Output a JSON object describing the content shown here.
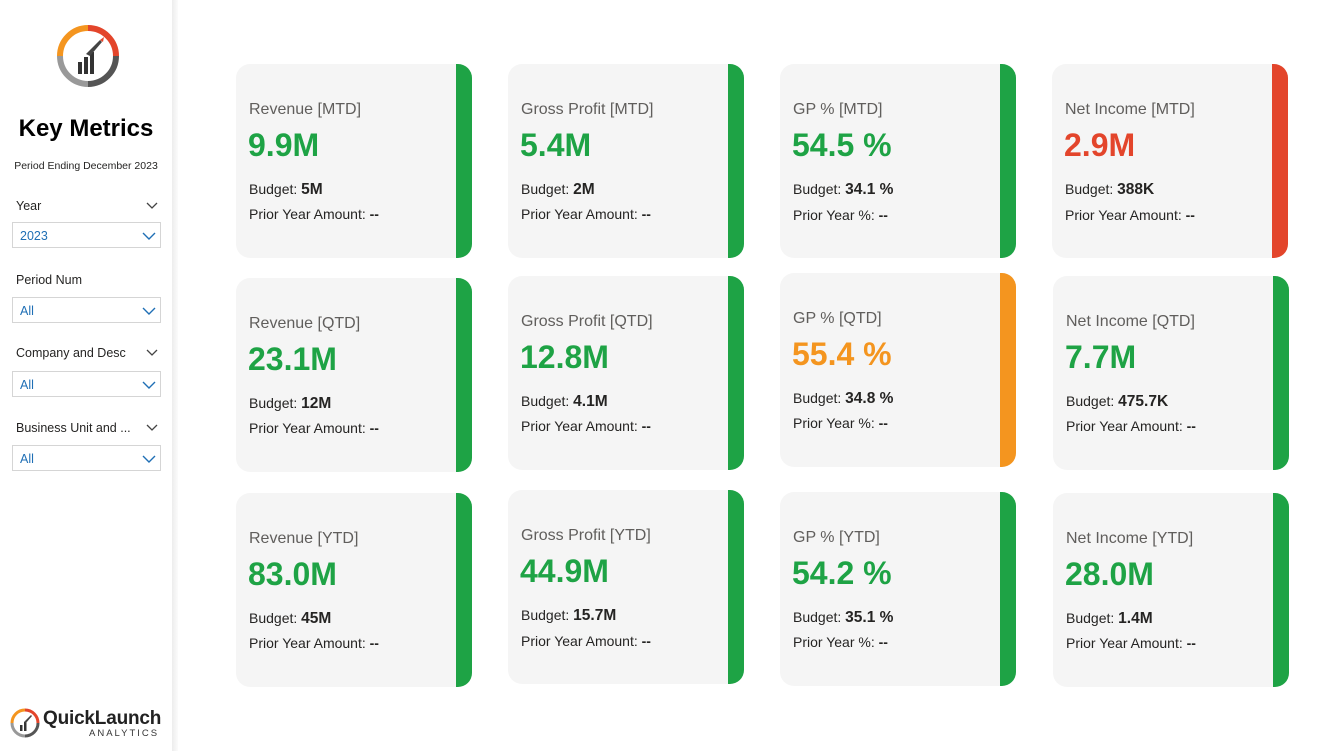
{
  "sidebar": {
    "title": "Key Metrics",
    "subtitle": "Period Ending December 2023",
    "slicers": [
      {
        "label": "Year",
        "value": "2023"
      },
      {
        "label": "Period Num",
        "value": "All"
      },
      {
        "label": "Company and Desc",
        "value": "All"
      },
      {
        "label": "Business Unit and ...",
        "value": "All"
      }
    ],
    "brand": {
      "name": "QuickLaunch",
      "sub": "ANALYTICS"
    }
  },
  "colors": {
    "green": "#1ea345",
    "red": "#e3452b",
    "orange": "#f4951f",
    "card_bg": "#f5f5f5"
  },
  "cards": {
    "rev_mtd": {
      "label": "Revenue [MTD]",
      "value": "9.9M",
      "budget_label": "Budget:",
      "budget": "5M",
      "prior_label": "Prior Year Amount:",
      "prior": "--",
      "status": "green"
    },
    "gp_mtd": {
      "label": "Gross Profit [MTD]",
      "value": "5.4M",
      "budget_label": "Budget:",
      "budget": "2M",
      "prior_label": "Prior Year Amount:",
      "prior": "--",
      "status": "green"
    },
    "gpp_mtd": {
      "label": "GP % [MTD]",
      "value": "54.5 %",
      "budget_label": "Budget:",
      "budget": "34.1 %",
      "prior_label": "Prior Year %:",
      "prior": "--",
      "status": "green"
    },
    "ni_mtd": {
      "label": "Net Income [MTD]",
      "value": "2.9M",
      "budget_label": "Budget:",
      "budget": "388K",
      "prior_label": "Prior Year Amount:",
      "prior": "--",
      "status": "red"
    },
    "rev_qtd": {
      "label": "Revenue [QTD]",
      "value": "23.1M",
      "budget_label": "Budget:",
      "budget": "12M",
      "prior_label": "Prior Year Amount:",
      "prior": "--",
      "status": "green"
    },
    "gp_qtd": {
      "label": "Gross Profit [QTD]",
      "value": "12.8M",
      "budget_label": "Budget:",
      "budget": "4.1M",
      "prior_label": "Prior Year Amount:",
      "prior": "--",
      "status": "green"
    },
    "gpp_qtd": {
      "label": "GP % [QTD]",
      "value": "55.4 %",
      "budget_label": "Budget:",
      "budget": "34.8 %",
      "prior_label": "Prior Year %:",
      "prior": "--",
      "status": "orange"
    },
    "ni_qtd": {
      "label": "Net Income [QTD]",
      "value": "7.7M",
      "budget_label": "Budget:",
      "budget": "475.7K",
      "prior_label": "Prior Year Amount:",
      "prior": "--",
      "status": "green"
    },
    "rev_ytd": {
      "label": "Revenue [YTD]",
      "value": "83.0M",
      "budget_label": "Budget:",
      "budget": "45M",
      "prior_label": "Prior Year Amount:",
      "prior": "--",
      "status": "green"
    },
    "gp_ytd": {
      "label": "Gross Profit [YTD]",
      "value": "44.9M",
      "budget_label": "Budget:",
      "budget": "15.7M",
      "prior_label": "Prior Year Amount:",
      "prior": "--",
      "status": "green"
    },
    "gpp_ytd": {
      "label": "GP % [YTD]",
      "value": "54.2 %",
      "budget_label": "Budget:",
      "budget": "35.1 %",
      "prior_label": "Prior Year %:",
      "prior": "--",
      "status": "green"
    },
    "ni_ytd": {
      "label": "Net Income [YTD]",
      "value": "28.0M",
      "budget_label": "Budget:",
      "budget": "1.4M",
      "prior_label": "Prior Year Amount:",
      "prior": "--",
      "status": "green"
    }
  }
}
